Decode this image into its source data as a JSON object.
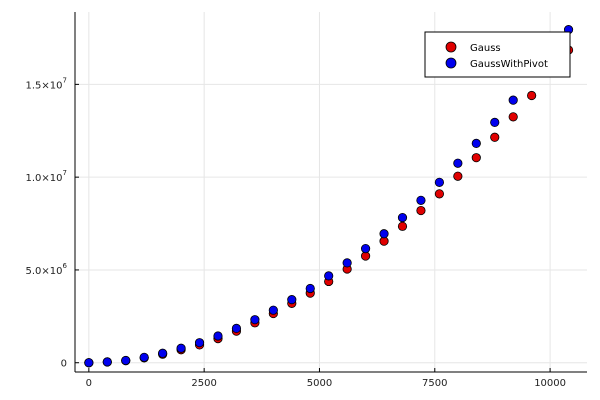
{
  "chart_data": {
    "type": "scatter",
    "xlim": [
      -300,
      10800
    ],
    "ylim": [
      -500000,
      18900000
    ],
    "x_ticks": [
      {
        "value": 0,
        "label": "0"
      },
      {
        "value": 2500,
        "label": "2500"
      },
      {
        "value": 5000,
        "label": "5000"
      },
      {
        "value": 7500,
        "label": "7500"
      },
      {
        "value": 10000,
        "label": "10000"
      }
    ],
    "y_ticks": [
      {
        "value": 0,
        "label": "0",
        "exp": ""
      },
      {
        "value": 5000000,
        "label": "5.0×10",
        "exp": "6"
      },
      {
        "value": 10000000,
        "label": "1.0×10",
        "exp": "7"
      },
      {
        "value": 15000000,
        "label": "1.5×10",
        "exp": "7"
      }
    ],
    "grid": true,
    "legend_position": "top-right",
    "series": [
      {
        "name": "Gauss",
        "color": "#e00000",
        "x": [
          0,
          400,
          800,
          1200,
          1600,
          2000,
          2400,
          2800,
          3200,
          3600,
          4000,
          4400,
          4800,
          5200,
          5600,
          6000,
          6400,
          6800,
          7200,
          7600,
          8000,
          8400,
          8800,
          9200,
          9600,
          10400
        ],
        "y": [
          0,
          40000,
          110000,
          260000,
          460000,
          700000,
          960000,
          1300000,
          1700000,
          2150000,
          2650000,
          3200000,
          3750000,
          4380000,
          5050000,
          5750000,
          6550000,
          7350000,
          8200000,
          9100000,
          10050000,
          11050000,
          12150000,
          13250000,
          14400000,
          16850000
        ]
      },
      {
        "name": "GaussWithPivot",
        "color": "#0000ee",
        "x": [
          0,
          400,
          800,
          1200,
          1600,
          2000,
          2400,
          2800,
          3200,
          3600,
          4000,
          4400,
          4800,
          5200,
          5600,
          6000,
          6400,
          6800,
          7200,
          7600,
          8000,
          8400,
          8800,
          9200,
          10400
        ],
        "y": [
          0,
          45000,
          120000,
          290000,
          510000,
          780000,
          1080000,
          1440000,
          1850000,
          2320000,
          2830000,
          3400000,
          4000000,
          4680000,
          5380000,
          6150000,
          6950000,
          7820000,
          8750000,
          9720000,
          10750000,
          11820000,
          12950000,
          14150000,
          17950000
        ]
      }
    ]
  }
}
